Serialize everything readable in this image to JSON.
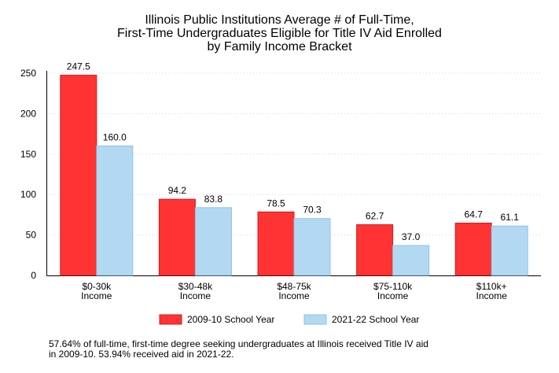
{
  "chart_data": {
    "type": "bar",
    "title": [
      "Illinois Public Institutions Average # of Full-Time,",
      "First-Time Undergraduates Eligible for Title IV Aid Enrolled",
      "by Family Income Bracket"
    ],
    "categories": [
      [
        "$0-30k",
        "Income"
      ],
      [
        "$30-48k",
        "Income"
      ],
      [
        "$48-75k",
        "Income"
      ],
      [
        "$75-110k",
        "Income"
      ],
      [
        "$110k+",
        "Income"
      ]
    ],
    "series": [
      {
        "name": "2009-10 School Year",
        "values": [
          247.5,
          94.2,
          78.5,
          62.7,
          64.7
        ],
        "labels": [
          "247.5",
          "94.2",
          "78.5",
          "62.7",
          "64.7"
        ],
        "color": "#ff3333",
        "stroke": "#cc1f1f"
      },
      {
        "name": "2021-22 School Year",
        "values": [
          160.0,
          83.8,
          70.3,
          37.0,
          61.1
        ],
        "labels": [
          "160.0",
          "83.8",
          "70.3",
          "37.0",
          "61.1"
        ],
        "color": "#b3d9f2",
        "stroke": "#8fc0e4"
      }
    ],
    "ylim": [
      0,
      250
    ],
    "yticks": [
      0,
      50,
      100,
      150,
      200,
      250
    ],
    "xlabel": "",
    "ylabel": "",
    "grid": "horizontal-dotted",
    "legend_position": "bottom"
  },
  "footnote": [
    "57.64% of full-time, first-time degree seeking undergraduates at Illinois received Title IV aid",
    "in 2009-10. 53.94% received aid in 2021-22."
  ]
}
